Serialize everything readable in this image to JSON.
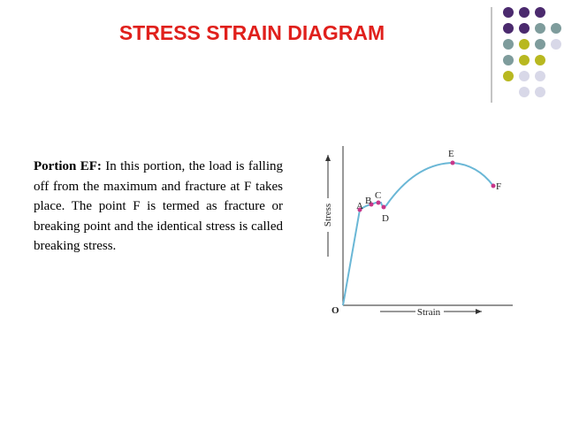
{
  "title": "STRESS STRAIN DIAGRAM",
  "body": {
    "heading": "Portion EF:",
    "text": "In this portion, the load is falling off from the maximum and fracture at F takes place. The point F is termed as fracture or breaking point and the identical stress is called breaking stress."
  },
  "diagram": {
    "y_axis_label": "Stress",
    "x_axis_label": "Strain",
    "origin": "O",
    "points": [
      "A",
      "B",
      "C",
      "D",
      "E",
      "F"
    ]
  }
}
